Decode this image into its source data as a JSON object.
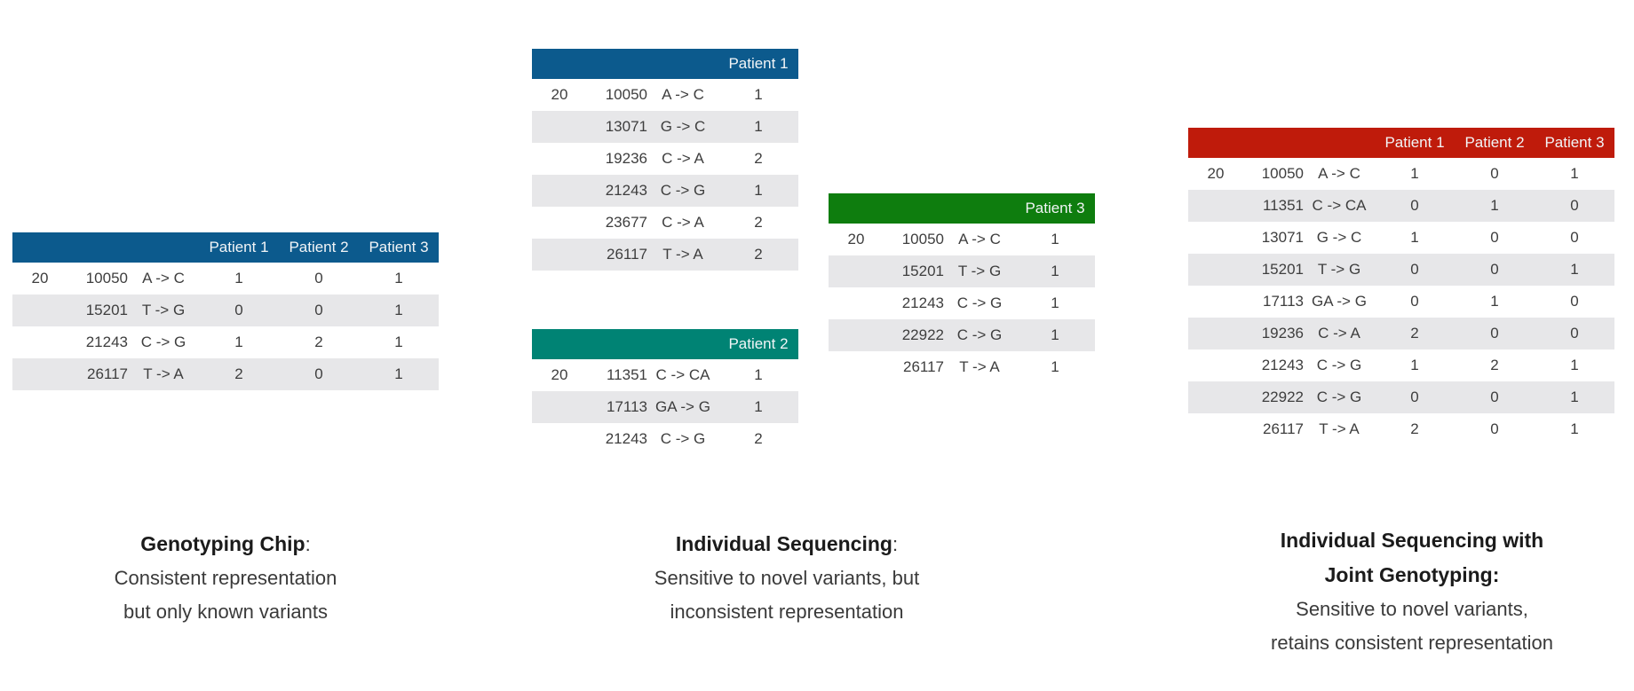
{
  "colors": {
    "chip_blue": "#0C5A8D",
    "patient1_blue": "#0C5A8D",
    "patient2_teal": "#008374",
    "patient3_green": "#0E7D0E",
    "joint_red": "#BF1B0B",
    "row_alt": "#E7E7E9",
    "body_text": "#3E3E3E",
    "header_text": "#F2F5F7"
  },
  "tables": [
    {
      "name": "genotyping-chip-table",
      "header_color": "#0C5A8D",
      "patients": [
        "Patient 1",
        "Patient 2",
        "Patient 3"
      ],
      "rows": [
        {
          "chrom": "20",
          "pos": "10050",
          "change": "A -> C",
          "values": [
            "1",
            "0",
            "1"
          ]
        },
        {
          "chrom": "",
          "pos": "15201",
          "change": "T -> G",
          "values": [
            "0",
            "0",
            "1"
          ]
        },
        {
          "chrom": "",
          "pos": "21243",
          "change": "C -> G",
          "values": [
            "1",
            "2",
            "1"
          ]
        },
        {
          "chrom": "",
          "pos": "26117",
          "change": "T -> A",
          "values": [
            "2",
            "0",
            "1"
          ]
        }
      ]
    },
    {
      "name": "individual-sequencing-patient1-table",
      "header_color": "#0C5A8D",
      "patients": [
        "Patient 1"
      ],
      "rows": [
        {
          "chrom": "20",
          "pos": "10050",
          "change": "A -> C",
          "values": [
            "1"
          ]
        },
        {
          "chrom": "",
          "pos": "13071",
          "change": "G -> C",
          "values": [
            "1"
          ]
        },
        {
          "chrom": "",
          "pos": "19236",
          "change": "C -> A",
          "values": [
            "2"
          ]
        },
        {
          "chrom": "",
          "pos": "21243",
          "change": "C -> G",
          "values": [
            "1"
          ]
        },
        {
          "chrom": "",
          "pos": "23677",
          "change": "C -> A",
          "values": [
            "2"
          ]
        },
        {
          "chrom": "",
          "pos": "26117",
          "change": "T -> A",
          "values": [
            "2"
          ]
        }
      ]
    },
    {
      "name": "individual-sequencing-patient2-table",
      "header_color": "#008374",
      "patients": [
        "Patient 2"
      ],
      "rows": [
        {
          "chrom": "20",
          "pos": "11351",
          "change": "C -> CA",
          "values": [
            "1"
          ]
        },
        {
          "chrom": "",
          "pos": "17113",
          "change": "GA -> G",
          "values": [
            "1"
          ]
        },
        {
          "chrom": "",
          "pos": "21243",
          "change": "C -> G",
          "values": [
            "2"
          ]
        }
      ]
    },
    {
      "name": "individual-sequencing-patient3-table",
      "header_color": "#0E7D0E",
      "patients": [
        "Patient 3"
      ],
      "rows": [
        {
          "chrom": "20",
          "pos": "10050",
          "change": "A -> C",
          "values": [
            "1"
          ]
        },
        {
          "chrom": "",
          "pos": "15201",
          "change": "T -> G",
          "values": [
            "1"
          ]
        },
        {
          "chrom": "",
          "pos": "21243",
          "change": "C -> G",
          "values": [
            "1"
          ]
        },
        {
          "chrom": "",
          "pos": "22922",
          "change": "C -> G",
          "values": [
            "1"
          ]
        },
        {
          "chrom": "",
          "pos": "26117",
          "change": "T -> A",
          "values": [
            "1"
          ]
        }
      ]
    },
    {
      "name": "joint-genotyping-table",
      "header_color": "#BF1B0B",
      "patients": [
        "Patient 1",
        "Patient 2",
        "Patient 3"
      ],
      "rows": [
        {
          "chrom": "20",
          "pos": "10050",
          "change": "A -> C",
          "values": [
            "1",
            "0",
            "1"
          ]
        },
        {
          "chrom": "",
          "pos": "11351",
          "change": "C -> CA",
          "values": [
            "0",
            "1",
            "0"
          ]
        },
        {
          "chrom": "",
          "pos": "13071",
          "change": "G -> C",
          "values": [
            "1",
            "0",
            "0"
          ]
        },
        {
          "chrom": "",
          "pos": "15201",
          "change": "T -> G",
          "values": [
            "0",
            "0",
            "1"
          ]
        },
        {
          "chrom": "",
          "pos": "17113",
          "change": "GA -> G",
          "values": [
            "0",
            "1",
            "0"
          ]
        },
        {
          "chrom": "",
          "pos": "19236",
          "change": "C -> A",
          "values": [
            "2",
            "0",
            "0"
          ]
        },
        {
          "chrom": "",
          "pos": "21243",
          "change": "C -> G",
          "values": [
            "1",
            "2",
            "1"
          ]
        },
        {
          "chrom": "",
          "pos": "22922",
          "change": "C -> G",
          "values": [
            "0",
            "0",
            "1"
          ]
        },
        {
          "chrom": "",
          "pos": "26117",
          "change": "T -> A",
          "values": [
            "2",
            "0",
            "1"
          ]
        }
      ]
    }
  ],
  "captions": [
    {
      "name": "genotyping-chip-caption",
      "bold_lines": [
        "Genotyping Chip"
      ],
      "suffix": ":",
      "lines": [
        "Consistent representation",
        "but only known variants"
      ]
    },
    {
      "name": "individual-sequencing-caption",
      "bold_lines": [
        "Individual Sequencing"
      ],
      "suffix": ":",
      "lines": [
        "Sensitive to novel variants, but",
        "inconsistent representation"
      ]
    },
    {
      "name": "joint-genotyping-caption",
      "bold_lines": [
        "Individual Sequencing with",
        "Joint Genotyping:"
      ],
      "suffix": "",
      "lines": [
        "Sensitive to novel variants,",
        "retains consistent representation"
      ]
    }
  ]
}
